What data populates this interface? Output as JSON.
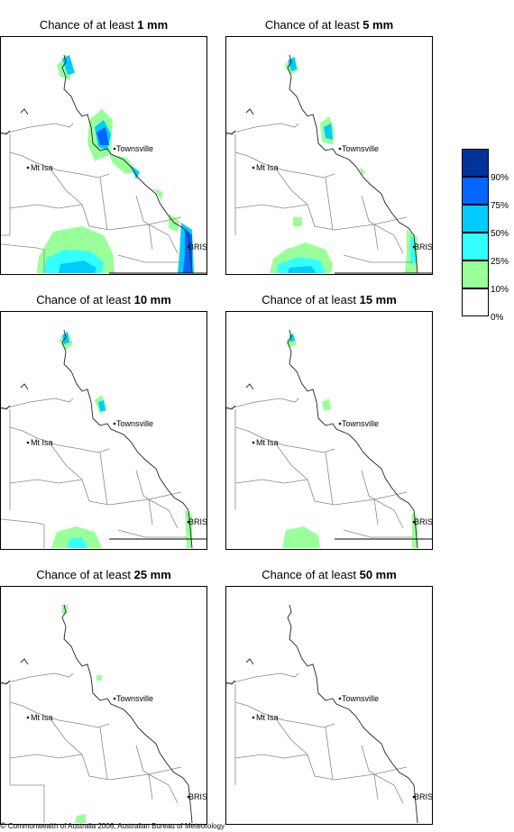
{
  "map_labels": {
    "townsville": "Townsville",
    "mt_isa": "Mt Isa",
    "bris": "BRIS"
  },
  "colors": {
    "class_10_25": "#99ff99",
    "class_25_50": "#33ffff",
    "class_50_75": "#00ccff",
    "class_75_90": "#0066ff",
    "class_90_100": "#003399",
    "coast": "#000000",
    "borders": "#888888"
  },
  "panels": [
    {
      "title_prefix": "Chance of at least ",
      "amount": "1 mm",
      "threshold_mm": 1
    },
    {
      "title_prefix": "Chance of at least ",
      "amount": "5 mm",
      "threshold_mm": 5
    },
    {
      "title_prefix": "Chance of at least ",
      "amount": "10 mm",
      "threshold_mm": 10
    },
    {
      "title_prefix": "Chance of at least ",
      "amount": "15 mm",
      "threshold_mm": 15
    },
    {
      "title_prefix": "Chance of at least ",
      "amount": "25 mm",
      "threshold_mm": 25
    },
    {
      "title_prefix": "Chance of at least ",
      "amount": "50 mm",
      "threshold_mm": 50
    }
  ],
  "legend": {
    "labels": [
      "90%",
      "75%",
      "50%",
      "25%",
      "10%",
      "0%"
    ],
    "colors": [
      "#003399",
      "#0066ff",
      "#00ccff",
      "#33ffff",
      "#99ff99",
      "#ffffff"
    ]
  },
  "footer": {
    "copyright_symbol": "©",
    "text": " Commonwealth of Australia 2006, Australian Bureau of Meteorology"
  }
}
